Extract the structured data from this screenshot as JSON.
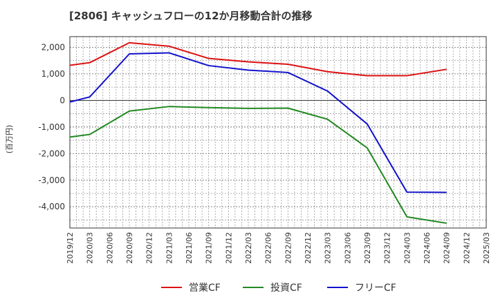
{
  "chart_data": {
    "type": "line",
    "title": "[2806]  キャッシュフローの12か月移動合計の推移",
    "ylabel": "(百万円)",
    "xlabel": "",
    "ylim": [
      -4800,
      2400
    ],
    "yticks": [
      2000,
      1000,
      0,
      -1000,
      -2000,
      -3000,
      -4000
    ],
    "ytick_labels": [
      "2,000",
      "1,000",
      "0",
      "-1,000",
      "-2,000",
      "-3,000",
      "-4,000"
    ],
    "x_tick_labels": [
      "2019/12",
      "2020/03",
      "2020/06",
      "2020/09",
      "2020/12",
      "2021/03",
      "2021/06",
      "2021/09",
      "2021/12",
      "2022/03",
      "2022/06",
      "2022/09",
      "2022/12",
      "2023/03",
      "2023/06",
      "2023/09",
      "2023/12",
      "2024/03",
      "2024/06",
      "2024/09",
      "2024/12",
      "2025/03"
    ],
    "grid": true,
    "legend_position": "bottom",
    "series": [
      {
        "name": "営業CF",
        "color": "#dd1111",
        "points": [
          {
            "x": "2019/12",
            "y": 1320
          },
          {
            "x": "2020/03",
            "y": 1420
          },
          {
            "x": "2020/09",
            "y": 2170
          },
          {
            "x": "2021/03",
            "y": 2040
          },
          {
            "x": "2021/09",
            "y": 1580
          },
          {
            "x": "2022/03",
            "y": 1450
          },
          {
            "x": "2022/09",
            "y": 1360
          },
          {
            "x": "2023/03",
            "y": 1080
          },
          {
            "x": "2023/09",
            "y": 930
          },
          {
            "x": "2024/03",
            "y": 930
          },
          {
            "x": "2024/09",
            "y": 1170
          }
        ]
      },
      {
        "name": "投資CF",
        "color": "#228822",
        "points": [
          {
            "x": "2019/12",
            "y": -1380
          },
          {
            "x": "2020/03",
            "y": -1280
          },
          {
            "x": "2020/09",
            "y": -400
          },
          {
            "x": "2021/03",
            "y": -230
          },
          {
            "x": "2021/09",
            "y": -270
          },
          {
            "x": "2022/03",
            "y": -300
          },
          {
            "x": "2022/09",
            "y": -290
          },
          {
            "x": "2023/03",
            "y": -710
          },
          {
            "x": "2023/09",
            "y": -1790
          },
          {
            "x": "2024/03",
            "y": -4380
          },
          {
            "x": "2024/09",
            "y": -4620
          }
        ]
      },
      {
        "name": "フリーCF",
        "color": "#1111cc",
        "points": [
          {
            "x": "2019/12",
            "y": -60
          },
          {
            "x": "2020/03",
            "y": 130
          },
          {
            "x": "2020/09",
            "y": 1750
          },
          {
            "x": "2021/03",
            "y": 1790
          },
          {
            "x": "2021/09",
            "y": 1310
          },
          {
            "x": "2022/03",
            "y": 1140
          },
          {
            "x": "2022/09",
            "y": 1050
          },
          {
            "x": "2023/03",
            "y": 350
          },
          {
            "x": "2023/09",
            "y": -890
          },
          {
            "x": "2024/03",
            "y": -3450
          },
          {
            "x": "2024/09",
            "y": -3460
          }
        ]
      }
    ]
  }
}
